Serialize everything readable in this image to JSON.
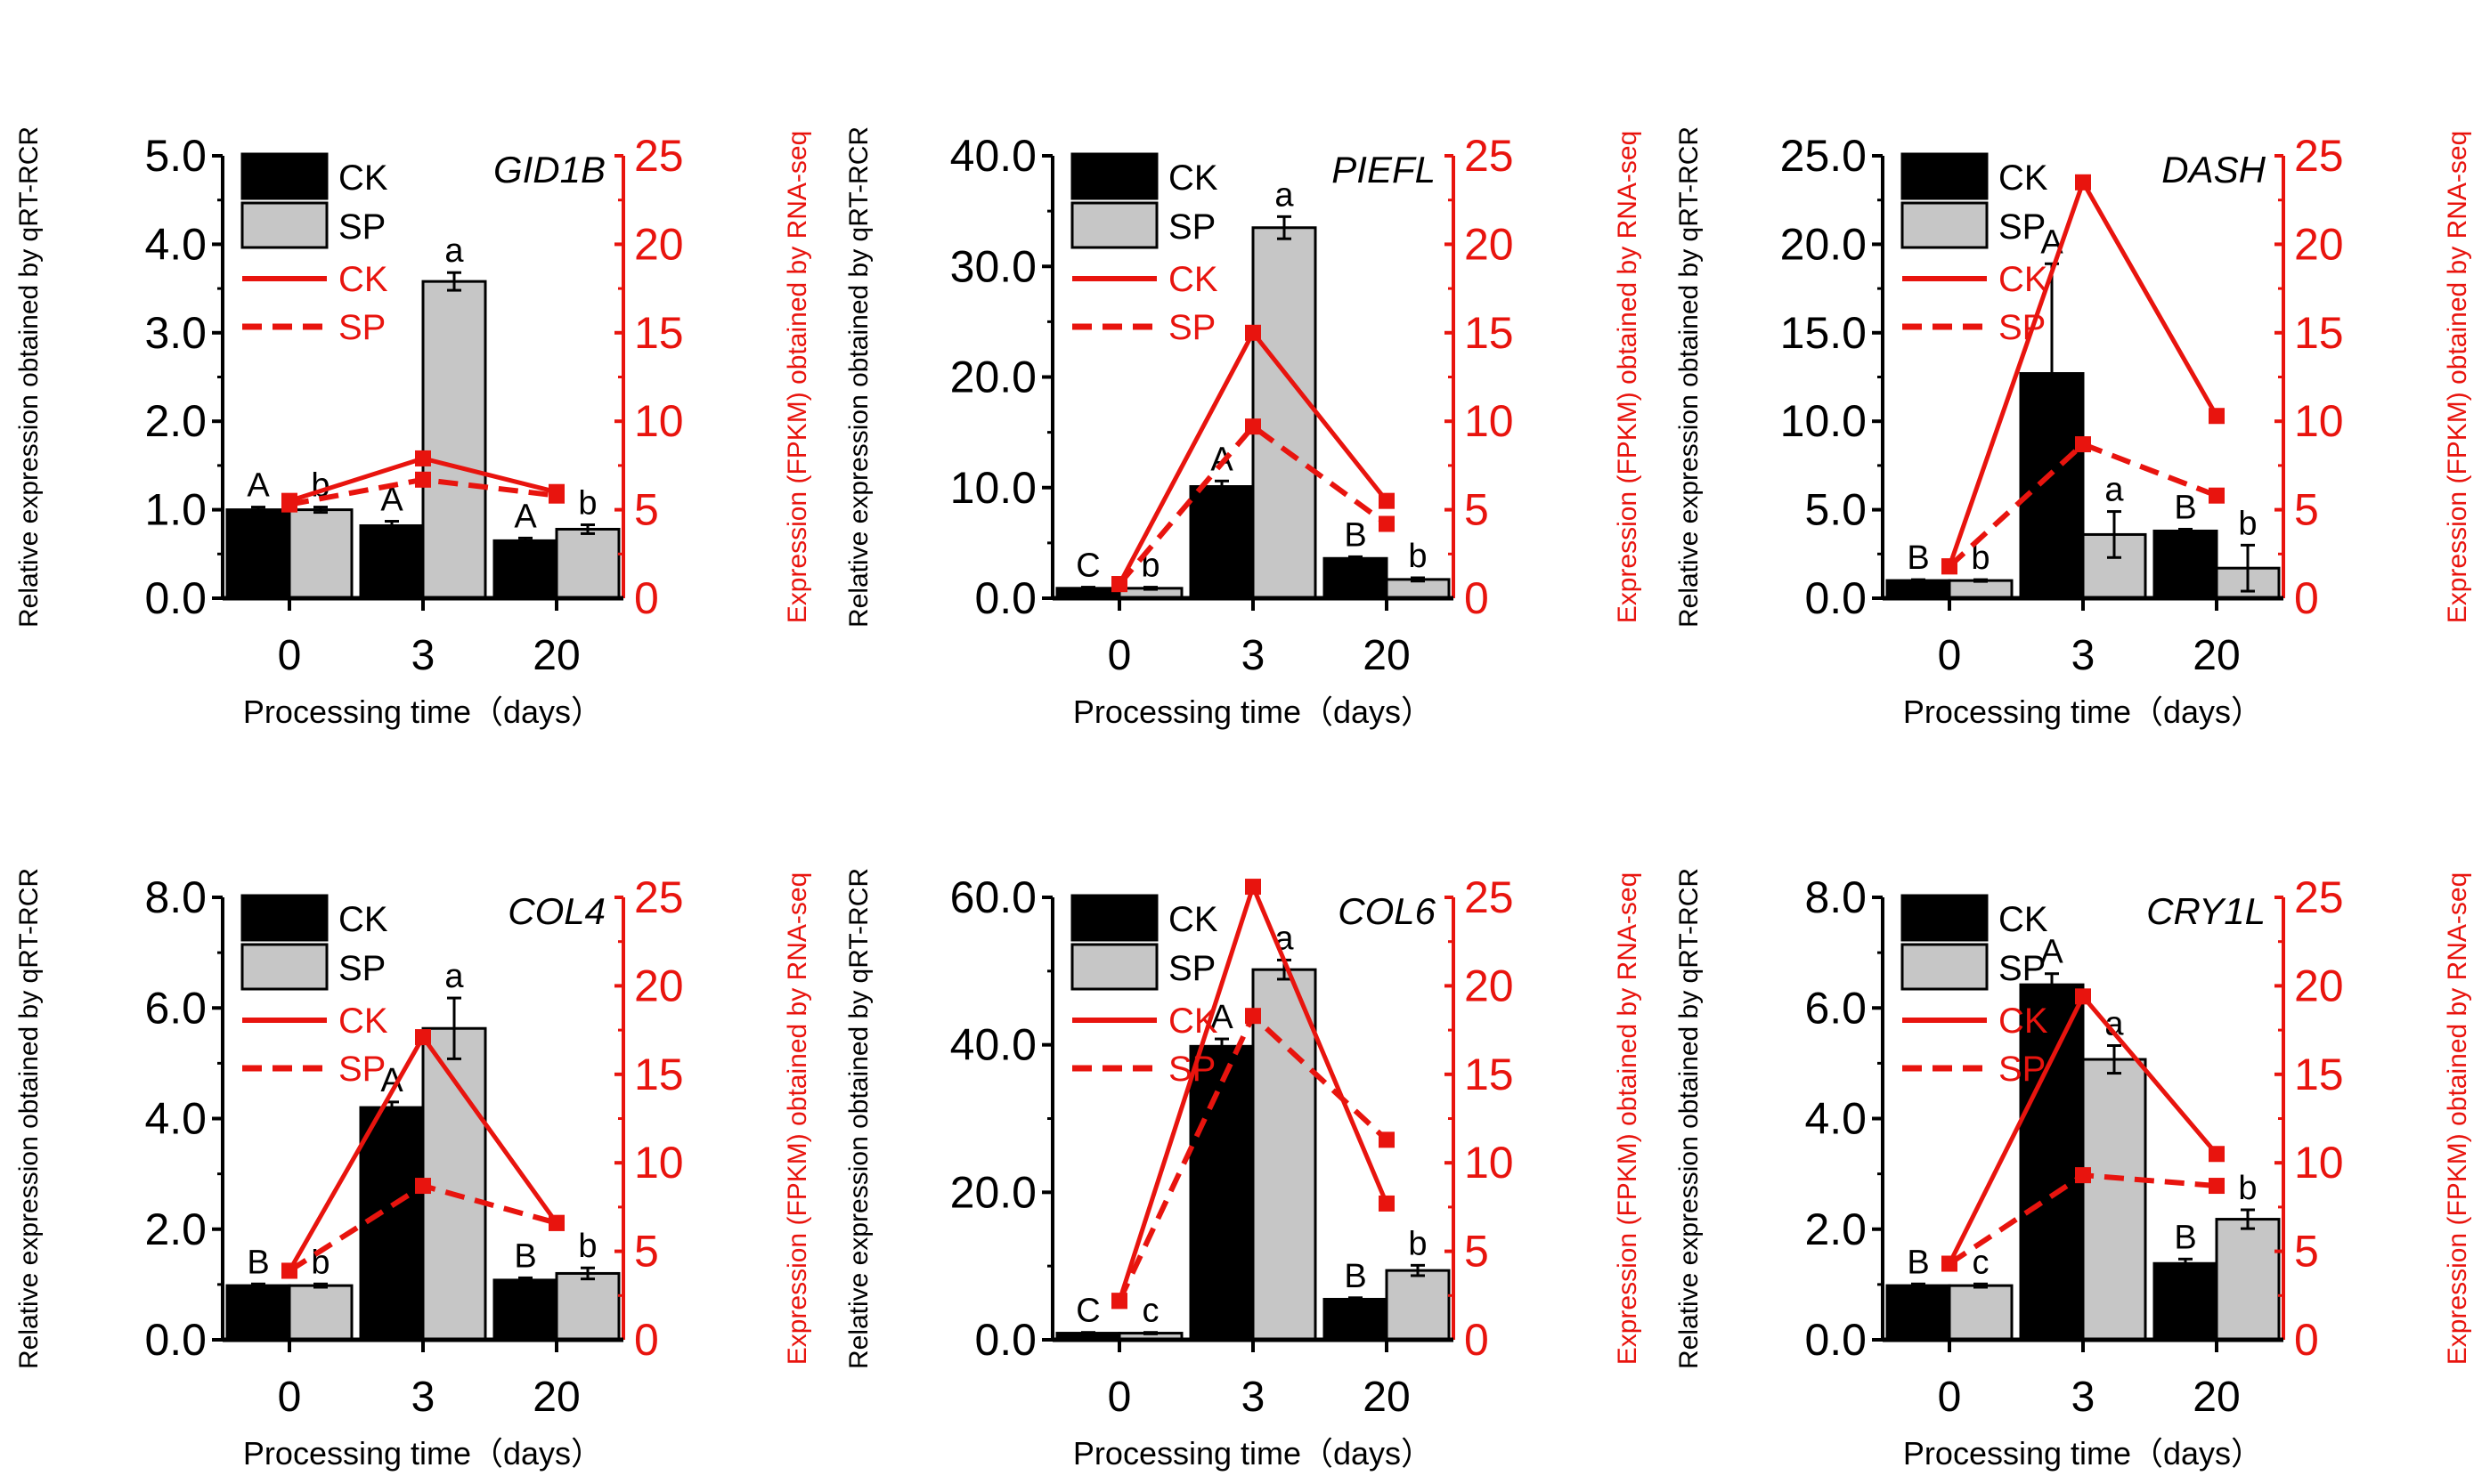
{
  "colors": {
    "ck_bar": "#000000",
    "sp_bar": "#c6c6c6",
    "line": "#e8140e",
    "axis_left": "#000000",
    "axis_right": "#e8140e"
  },
  "chart_data": [
    {
      "type": "bar+line",
      "gene": "GID1B",
      "categories": [
        "0",
        "3",
        "20"
      ],
      "xlabel": "Processing time（days）",
      "ylabel_left": "Relative expression obtained by qRT-RCR",
      "ylabel_right": "Expression (FPKM) obtained by RNA-seq",
      "ylim_left": [
        0,
        5
      ],
      "yticks_left": [
        "0.0",
        "1.0",
        "2.0",
        "3.0",
        "4.0",
        "5.0"
      ],
      "ylim_right": [
        0,
        25
      ],
      "yticks_right": [
        "0",
        "5",
        "10",
        "15",
        "20",
        "25"
      ],
      "bars": [
        {
          "name": "CK",
          "values": [
            1.0,
            0.82,
            0.65
          ],
          "errors": [
            0.03,
            0.05,
            0.03
          ],
          "labels": [
            "A",
            "A",
            "A"
          ]
        },
        {
          "name": "SP",
          "values": [
            1.0,
            3.58,
            0.78
          ],
          "errors": [
            0.03,
            0.1,
            0.05
          ],
          "labels": [
            "b",
            "a",
            "b"
          ]
        }
      ],
      "lines": [
        {
          "name": "CK",
          "style": "solid",
          "values": [
            5.5,
            7.9,
            6.0
          ]
        },
        {
          "name": "SP",
          "style": "dashed",
          "values": [
            5.3,
            6.7,
            5.8
          ]
        }
      ],
      "legend": [
        "CK",
        "SP",
        "CK",
        "SP"
      ]
    },
    {
      "type": "bar+line",
      "gene": "PIEFL",
      "categories": [
        "0",
        "3",
        "20"
      ],
      "xlabel": "Processing time（days）",
      "ylabel_left": "Relative expression obtained by qRT-RCR",
      "ylabel_right": "Expression (FPKM) obtained by RNA-seq",
      "ylim_left": [
        0,
        40
      ],
      "yticks_left": [
        "0.0",
        "10.0",
        "20.0",
        "30.0",
        "40.0"
      ],
      "ylim_right": [
        0,
        25
      ],
      "yticks_right": [
        "0",
        "5",
        "10",
        "15",
        "20",
        "25"
      ],
      "bars": [
        {
          "name": "CK",
          "values": [
            0.9,
            10.1,
            3.6
          ],
          "errors": [
            0.1,
            0.5,
            0.15
          ],
          "labels": [
            "C",
            "A",
            "B"
          ]
        },
        {
          "name": "SP",
          "values": [
            0.9,
            33.5,
            1.7
          ],
          "errors": [
            0.1,
            1.0,
            0.15
          ],
          "labels": [
            "b",
            "a",
            "b"
          ]
        }
      ],
      "lines": [
        {
          "name": "CK",
          "style": "solid",
          "values": [
            0.8,
            15.0,
            5.5
          ]
        },
        {
          "name": "SP",
          "style": "dashed",
          "values": [
            0.8,
            9.7,
            4.2
          ]
        }
      ],
      "legend": [
        "CK",
        "SP",
        "CK",
        "SP"
      ]
    },
    {
      "type": "bar+line",
      "gene": "DASH",
      "categories": [
        "0",
        "3",
        "20"
      ],
      "xlabel": "Processing time（days）",
      "ylabel_left": "Relative expression obtained by qRT-RCR",
      "ylabel_right": "Expression (FPKM) obtained by RNA-seq",
      "ylim_left": [
        0,
        25
      ],
      "yticks_left": [
        "0.0",
        "5.0",
        "10.0",
        "15.0",
        "20.0",
        "25.0"
      ],
      "ylim_right": [
        0,
        25
      ],
      "yticks_right": [
        "0",
        "5",
        "10",
        "15",
        "20",
        "25"
      ],
      "bars": [
        {
          "name": "CK",
          "values": [
            1.0,
            12.7,
            3.8
          ],
          "errors": [
            0.05,
            6.2,
            0.1
          ],
          "labels": [
            "B",
            "A",
            "B"
          ]
        },
        {
          "name": "SP",
          "values": [
            1.0,
            3.6,
            1.7
          ],
          "errors": [
            0.05,
            1.3,
            1.3
          ],
          "labels": [
            "b",
            "a",
            "b"
          ]
        }
      ],
      "lines": [
        {
          "name": "CK",
          "style": "solid",
          "values": [
            1.8,
            23.5,
            10.3
          ]
        },
        {
          "name": "SP",
          "style": "dashed",
          "values": [
            1.8,
            8.7,
            5.8
          ]
        }
      ],
      "legend": [
        "CK",
        "SP",
        "CK",
        "SP"
      ]
    },
    {
      "type": "bar+line",
      "gene": "COL4",
      "categories": [
        "0",
        "3",
        "20"
      ],
      "xlabel": "Processing time（days）",
      "ylabel_left": "Relative expression obtained by qRT-RCR",
      "ylabel_right": "Expression (FPKM) obtained by RNA-seq",
      "ylim_left": [
        0,
        8
      ],
      "yticks_left": [
        "0.0",
        "2.0",
        "4.0",
        "6.0",
        "8.0"
      ],
      "ylim_right": [
        0,
        25
      ],
      "yticks_right": [
        "0",
        "5",
        "10",
        "15",
        "20",
        "25"
      ],
      "bars": [
        {
          "name": "CK",
          "values": [
            0.98,
            4.2,
            1.08
          ],
          "errors": [
            0.03,
            0.1,
            0.04
          ],
          "labels": [
            "B",
            "A",
            "B"
          ]
        },
        {
          "name": "SP",
          "values": [
            0.98,
            5.63,
            1.2
          ],
          "errors": [
            0.03,
            0.55,
            0.1
          ],
          "labels": [
            "b",
            "a",
            "b"
          ]
        }
      ],
      "lines": [
        {
          "name": "CK",
          "style": "solid",
          "values": [
            3.9,
            17.1,
            6.6
          ]
        },
        {
          "name": "SP",
          "style": "dashed",
          "values": [
            3.9,
            8.7,
            6.6
          ]
        }
      ],
      "legend": [
        "CK",
        "SP",
        "CK",
        "SP"
      ]
    },
    {
      "type": "bar+line",
      "gene": "COL6",
      "categories": [
        "0",
        "3",
        "20"
      ],
      "xlabel": "Processing time（days）",
      "ylabel_left": "Relative expression obtained by qRT-RCR",
      "ylabel_right": "Expression (FPKM) obtained by RNA-seq",
      "ylim_left": [
        0,
        60
      ],
      "yticks_left": [
        "0.0",
        "20.0",
        "40.0",
        "60.0"
      ],
      "ylim_right": [
        0,
        25
      ],
      "yticks_right": [
        "0",
        "5",
        "10",
        "15",
        "20",
        "25"
      ],
      "bars": [
        {
          "name": "CK",
          "values": [
            0.9,
            39.8,
            5.5
          ],
          "errors": [
            0.1,
            1.0,
            0.2
          ],
          "labels": [
            "C",
            "A",
            "B"
          ]
        },
        {
          "name": "SP",
          "values": [
            0.9,
            50.2,
            9.4
          ],
          "errors": [
            0.1,
            1.3,
            0.7
          ],
          "labels": [
            "c",
            "a",
            "b"
          ]
        }
      ],
      "lines": [
        {
          "name": "CK",
          "style": "solid",
          "values": [
            2.2,
            25.6,
            7.7
          ]
        },
        {
          "name": "SP",
          "style": "dashed",
          "values": [
            2.2,
            18.3,
            11.3
          ]
        }
      ],
      "legend": [
        "CK",
        "SP",
        "CK",
        "SP"
      ]
    },
    {
      "type": "bar+line",
      "gene": "CRY1L",
      "categories": [
        "0",
        "3",
        "20"
      ],
      "xlabel": "Processing time（days）",
      "ylabel_left": "Relative expression obtained by qRT-RCR",
      "ylabel_right": "Expression (FPKM) obtained by RNA-seq",
      "ylim_left": [
        0,
        8
      ],
      "yticks_left": [
        "0.0",
        "2.0",
        "4.0",
        "6.0",
        "8.0"
      ],
      "ylim_right": [
        0,
        25
      ],
      "yticks_right": [
        "0",
        "5",
        "10",
        "15",
        "20",
        "25"
      ],
      "bars": [
        {
          "name": "CK",
          "values": [
            0.98,
            6.42,
            1.38
          ],
          "errors": [
            0.03,
            0.2,
            0.08
          ],
          "labels": [
            "B",
            "A",
            "B"
          ]
        },
        {
          "name": "SP",
          "values": [
            0.98,
            5.07,
            2.18
          ],
          "errors": [
            0.03,
            0.25,
            0.17
          ],
          "labels": [
            "c",
            "a",
            "b"
          ]
        }
      ],
      "lines": [
        {
          "name": "CK",
          "style": "solid",
          "values": [
            4.3,
            19.4,
            10.5
          ]
        },
        {
          "name": "SP",
          "style": "dashed",
          "values": [
            4.3,
            9.3,
            8.7
          ]
        }
      ],
      "legend": [
        "CK",
        "SP",
        "CK",
        "SP"
      ]
    }
  ]
}
